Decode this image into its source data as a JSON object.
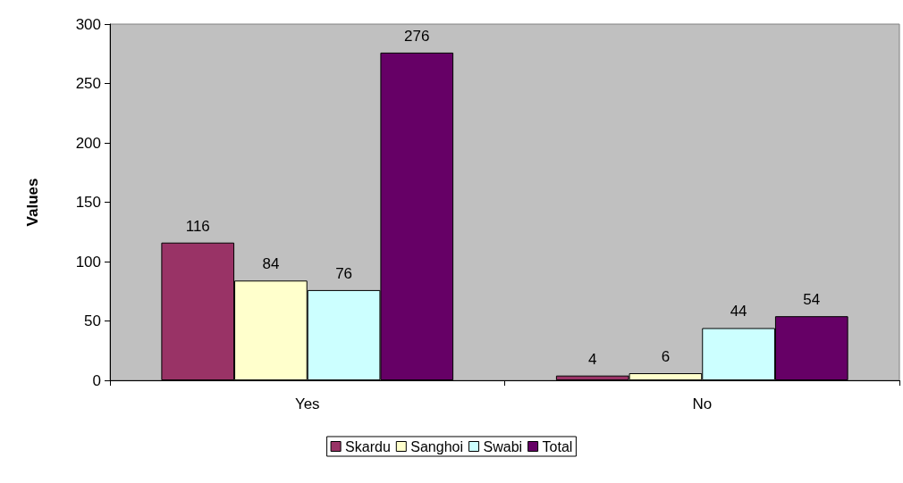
{
  "chart_data": {
    "type": "bar",
    "ylabel": "Values",
    "categories": [
      "Yes",
      "No"
    ],
    "series": [
      {
        "name": "Skardu",
        "color": "#993366",
        "values": [
          116,
          4
        ]
      },
      {
        "name": "Sanghoi",
        "color": "#ffffcc",
        "values": [
          84,
          6
        ]
      },
      {
        "name": "Swabi",
        "color": "#ccffff",
        "values": [
          76,
          44
        ]
      },
      {
        "name": "Total",
        "color": "#660066",
        "values": [
          276,
          54
        ]
      }
    ],
    "ylim": [
      0,
      300
    ],
    "yticks": [
      0,
      50,
      100,
      150,
      200,
      250,
      300
    ],
    "grid": false,
    "legend": "bottom",
    "data_labels": true
  }
}
